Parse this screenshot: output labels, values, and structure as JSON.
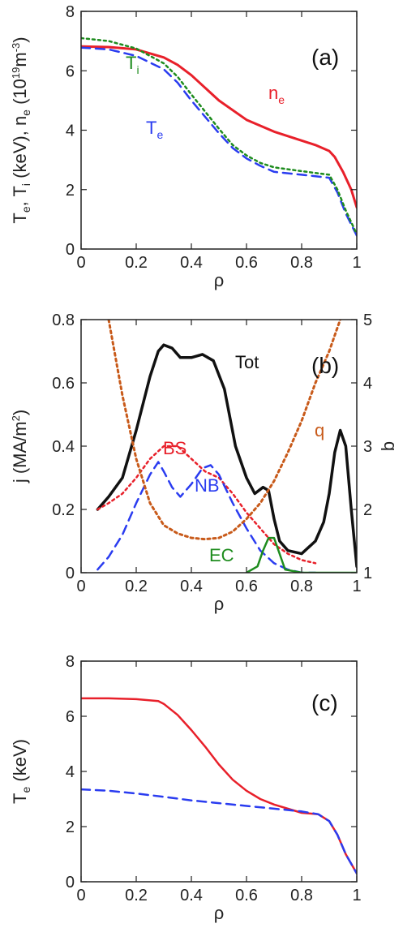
{
  "chart_data": [
    {
      "type": "line",
      "panel": "(a)",
      "xlabel": "ρ",
      "ylabel": {
        "parts": [
          "T",
          "e",
          ", T",
          "i",
          " (keV), n",
          "e",
          " (10",
          "19",
          "m",
          "-3",
          ")"
        ]
      },
      "xlim": [
        0,
        1
      ],
      "ylim": [
        0,
        8
      ],
      "xticks": [
        0,
        0.2,
        0.4,
        0.6,
        0.8,
        1
      ],
      "xtick_labels": [
        "0",
        "0.2",
        "0.4",
        "0.6",
        "0.8",
        "1"
      ],
      "yticks": [
        0,
        2,
        4,
        6,
        8
      ],
      "ytick_labels": [
        "0",
        "2",
        "4",
        "6",
        "8"
      ],
      "series": [
        {
          "name": "n_e",
          "label": {
            "main": "n",
            "sub": "e"
          },
          "color": "#e8202a",
          "style": "solid",
          "width": 3,
          "x": [
            0,
            0.1,
            0.2,
            0.3,
            0.35,
            0.4,
            0.5,
            0.6,
            0.7,
            0.8,
            0.85,
            0.9,
            0.92,
            0.95,
            0.98,
            1.0
          ],
          "y": [
            6.82,
            6.8,
            6.72,
            6.45,
            6.2,
            5.85,
            5.0,
            4.35,
            3.95,
            3.65,
            3.5,
            3.3,
            3.1,
            2.6,
            2.0,
            1.4
          ]
        },
        {
          "name": "T_e",
          "label": {
            "main": "T",
            "sub": "e"
          },
          "color": "#2a3cf0",
          "style": "dashed",
          "width": 2.5,
          "x": [
            0,
            0.1,
            0.2,
            0.3,
            0.35,
            0.4,
            0.5,
            0.55,
            0.6,
            0.65,
            0.7,
            0.8,
            0.9,
            0.93,
            0.96,
            1.0
          ],
          "y": [
            6.78,
            6.72,
            6.5,
            6.05,
            5.6,
            5.0,
            3.9,
            3.4,
            3.05,
            2.8,
            2.6,
            2.5,
            2.4,
            1.9,
            1.2,
            0.45
          ]
        },
        {
          "name": "T_i",
          "label": {
            "main": "T",
            "sub": "i"
          },
          "color": "#1e8c1e",
          "style": "dotted",
          "width": 2.5,
          "x": [
            0,
            0.1,
            0.2,
            0.3,
            0.35,
            0.4,
            0.5,
            0.55,
            0.6,
            0.65,
            0.7,
            0.8,
            0.9,
            0.93,
            0.96,
            1.0
          ],
          "y": [
            7.1,
            7.0,
            6.75,
            6.25,
            5.8,
            5.2,
            4.05,
            3.5,
            3.15,
            2.9,
            2.75,
            2.62,
            2.5,
            2.0,
            1.3,
            0.5
          ]
        }
      ]
    },
    {
      "type": "line",
      "panel": "(b)",
      "xlabel": "ρ",
      "ylabel": {
        "parts": [
          "j (MA/m",
          "2",
          ")"
        ]
      },
      "ylabel_right": "b",
      "xlim": [
        0,
        1
      ],
      "ylim": [
        0,
        0.8
      ],
      "ylim_right": [
        1,
        5
      ],
      "xticks": [
        0,
        0.2,
        0.4,
        0.6,
        0.8,
        1
      ],
      "xtick_labels": [
        "0",
        "0.2",
        "0.4",
        "0.6",
        "0.8",
        "1"
      ],
      "yticks": [
        0,
        0.2,
        0.4,
        0.6,
        0.8
      ],
      "ytick_labels": [
        "0",
        "0.2",
        "0.4",
        "0.6",
        "0.8"
      ],
      "yticks_right": [
        1,
        2,
        3,
        4,
        5
      ],
      "ytick_labels_right": [
        "1",
        "2",
        "3",
        "4",
        "5"
      ],
      "series": [
        {
          "name": "Tot",
          "label": {
            "main": "Tot"
          },
          "color": "#111111",
          "style": "solid",
          "width": 3.5,
          "axis": "left",
          "x": [
            0.06,
            0.1,
            0.15,
            0.2,
            0.25,
            0.28,
            0.3,
            0.33,
            0.36,
            0.4,
            0.44,
            0.48,
            0.52,
            0.56,
            0.6,
            0.63,
            0.66,
            0.68,
            0.7,
            0.72,
            0.75,
            0.8,
            0.85,
            0.88,
            0.9,
            0.92,
            0.94,
            0.96,
            0.98,
            1.0
          ],
          "y": [
            0.2,
            0.24,
            0.3,
            0.45,
            0.62,
            0.7,
            0.72,
            0.71,
            0.68,
            0.68,
            0.69,
            0.67,
            0.58,
            0.4,
            0.3,
            0.25,
            0.27,
            0.26,
            0.17,
            0.1,
            0.07,
            0.06,
            0.1,
            0.16,
            0.25,
            0.38,
            0.45,
            0.4,
            0.2,
            0.02
          ]
        },
        {
          "name": "BS",
          "label": {
            "main": "BS"
          },
          "color": "#e8202a",
          "style": "dotted",
          "width": 2.5,
          "axis": "left",
          "x": [
            0.06,
            0.1,
            0.15,
            0.2,
            0.25,
            0.3,
            0.35,
            0.4,
            0.45,
            0.5,
            0.55,
            0.6,
            0.65,
            0.7,
            0.75,
            0.8,
            0.85
          ],
          "y": [
            0.2,
            0.22,
            0.25,
            0.3,
            0.36,
            0.4,
            0.4,
            0.36,
            0.32,
            0.3,
            0.25,
            0.19,
            0.14,
            0.09,
            0.06,
            0.04,
            0.03
          ]
        },
        {
          "name": "NB",
          "label": {
            "main": "NB"
          },
          "color": "#2a3cf0",
          "style": "dashed",
          "width": 2.5,
          "axis": "left",
          "x": [
            0.06,
            0.1,
            0.15,
            0.2,
            0.25,
            0.28,
            0.3,
            0.33,
            0.36,
            0.4,
            0.44,
            0.47,
            0.5,
            0.55,
            0.6,
            0.65,
            0.7,
            0.75,
            0.8,
            0.85
          ],
          "y": [
            0.01,
            0.05,
            0.12,
            0.22,
            0.31,
            0.35,
            0.32,
            0.27,
            0.24,
            0.28,
            0.33,
            0.34,
            0.31,
            0.22,
            0.14,
            0.07,
            0.03,
            0.01,
            0.0,
            0.0
          ]
        },
        {
          "name": "EC",
          "label": {
            "main": "EC"
          },
          "color": "#1e8c1e",
          "style": "solid",
          "width": 2.5,
          "axis": "left",
          "x": [
            0.6,
            0.64,
            0.66,
            0.68,
            0.7,
            0.72,
            0.74,
            0.8,
            0.9,
            1.0
          ],
          "y": [
            0.0,
            0.02,
            0.07,
            0.11,
            0.11,
            0.06,
            0.01,
            0.0,
            0.0,
            0.0
          ]
        },
        {
          "name": "q",
          "label": {
            "main": "q"
          },
          "color": "#c85a1a",
          "style": "dotted",
          "width": 3,
          "axis": "right",
          "x": [
            0.1,
            0.15,
            0.2,
            0.25,
            0.3,
            0.35,
            0.4,
            0.45,
            0.5,
            0.55,
            0.6,
            0.65,
            0.7,
            0.75,
            0.8,
            0.85,
            0.9,
            0.94
          ],
          "y": [
            5.0,
            3.8,
            2.8,
            2.1,
            1.75,
            1.62,
            1.55,
            1.53,
            1.55,
            1.65,
            1.85,
            2.1,
            2.45,
            2.9,
            3.4,
            4.0,
            4.5,
            5.0
          ]
        }
      ]
    },
    {
      "type": "line",
      "panel": "(c)",
      "xlabel": "ρ",
      "ylabel": {
        "parts": [
          "T",
          "e",
          " (keV)"
        ]
      },
      "xlim": [
        0,
        1
      ],
      "ylim": [
        0,
        8
      ],
      "xticks": [
        0,
        0.2,
        0.4,
        0.6,
        0.8,
        1
      ],
      "xtick_labels": [
        "0",
        "0.2",
        "0.4",
        "0.6",
        "0.8",
        "1"
      ],
      "yticks": [
        0,
        2,
        4,
        6,
        8
      ],
      "ytick_labels": [
        "0",
        "2",
        "4",
        "6",
        "8"
      ],
      "series": [
        {
          "color": "#e8202a",
          "style": "solid",
          "width": 2.5,
          "x": [
            0,
            0.1,
            0.2,
            0.28,
            0.3,
            0.35,
            0.4,
            0.45,
            0.5,
            0.55,
            0.6,
            0.65,
            0.7,
            0.8,
            0.86,
            0.9,
            0.93,
            0.96,
            1.0
          ],
          "y": [
            6.65,
            6.65,
            6.62,
            6.55,
            6.45,
            6.05,
            5.5,
            4.9,
            4.25,
            3.7,
            3.3,
            3.0,
            2.8,
            2.5,
            2.45,
            2.2,
            1.7,
            1.0,
            0.3
          ]
        },
        {
          "color": "#2a3cf0",
          "style": "dashed",
          "width": 2.5,
          "x": [
            0,
            0.1,
            0.2,
            0.3,
            0.4,
            0.5,
            0.6,
            0.7,
            0.8,
            0.86,
            0.9,
            0.93,
            0.96,
            1.0
          ],
          "y": [
            3.35,
            3.3,
            3.2,
            3.08,
            2.95,
            2.85,
            2.75,
            2.65,
            2.55,
            2.45,
            2.2,
            1.7,
            1.0,
            0.3
          ]
        }
      ]
    }
  ]
}
